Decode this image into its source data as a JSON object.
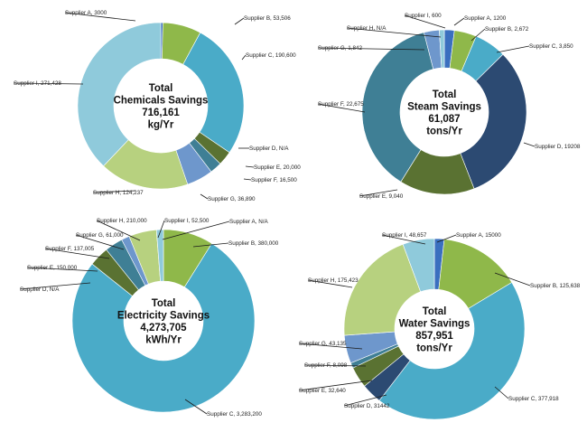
{
  "colors": {
    "A": "#3a6fbf",
    "B": "#8fb84a",
    "C": "#4aabc8",
    "D": "#2c4a72",
    "E": "#5a7232",
    "F": "#3f7f95",
    "G": "#6e97cc",
    "H": "#b7d17f",
    "I": "#8fcadb"
  },
  "chart_data": [
    {
      "type": "donut",
      "center": [
        "Total",
        "Chemicals Savings",
        "716,161",
        "kg/Yr"
      ],
      "slices": [
        {
          "supplier": "A",
          "value": 3000,
          "label": "Supplier A, 3000"
        },
        {
          "supplier": "B",
          "value": 53506,
          "label": "Supplier B, 53,506"
        },
        {
          "supplier": "C",
          "value": 190600,
          "label": "Supplier C, 190,600"
        },
        {
          "supplier": "D",
          "value": 0,
          "label": "Supplier D, N/A"
        },
        {
          "supplier": "E",
          "value": 20000,
          "label": "Supplier E, 20,000"
        },
        {
          "supplier": "F",
          "value": 16500,
          "label": "Supplier F, 16,500"
        },
        {
          "supplier": "G",
          "value": 36890,
          "label": "Supplier G, 36,890"
        },
        {
          "supplier": "H",
          "value": 124237,
          "label": "Supplier H, 124,237"
        },
        {
          "supplier": "I",
          "value": 271428,
          "label": "Supplier I, 271,428"
        }
      ]
    },
    {
      "type": "donut",
      "center": [
        "Total",
        "Steam Savings",
        "61,087",
        "tons/Yr"
      ],
      "slices": [
        {
          "supplier": "A",
          "value": 1200,
          "label": "Supplier A, 1200"
        },
        {
          "supplier": "B",
          "value": 2672,
          "label": "Supplier B, 2,672"
        },
        {
          "supplier": "C",
          "value": 3850,
          "label": "Supplier C, 3,850"
        },
        {
          "supplier": "D",
          "value": 19208,
          "label": "Supplier D, 19208"
        },
        {
          "supplier": "E",
          "value": 9040,
          "label": "Supplier E, 9,040"
        },
        {
          "supplier": "F",
          "value": 22675,
          "label": "Supplier F, 22,675"
        },
        {
          "supplier": "G",
          "value": 1842,
          "label": "Supplier G, 1,842"
        },
        {
          "supplier": "H",
          "value": 0,
          "label": "Supplier H, N/A"
        },
        {
          "supplier": "I",
          "value": 600,
          "label": "Supplier I, 600"
        }
      ]
    },
    {
      "type": "donut",
      "center": [
        "Total",
        "Electricity Savings",
        "4,273,705",
        "kWh/Yr"
      ],
      "slices": [
        {
          "supplier": "A",
          "value": 0,
          "label": "Supplier A, N/A"
        },
        {
          "supplier": "B",
          "value": 380000,
          "label": "Supplier B, 380,000"
        },
        {
          "supplier": "C",
          "value": 3283200,
          "label": "Supplier C, 3,283,200"
        },
        {
          "supplier": "D",
          "value": 0,
          "label": "Supplier D, N/A"
        },
        {
          "supplier": "E",
          "value": 150000,
          "label": "Supplier E, 150,000"
        },
        {
          "supplier": "F",
          "value": 137005,
          "label": "Supplier F, 137,005"
        },
        {
          "supplier": "G",
          "value": 61000,
          "label": "Supplier G, 61,000"
        },
        {
          "supplier": "H",
          "value": 210000,
          "label": "Supplier H, 210,000"
        },
        {
          "supplier": "I",
          "value": 52500,
          "label": "Supplier I, 52,500"
        }
      ]
    },
    {
      "type": "donut",
      "center": [
        "Total",
        "Water Savings",
        "857,951",
        "tons/Yr"
      ],
      "slices": [
        {
          "supplier": "A",
          "value": 15000,
          "label": "Supplier A, 15000"
        },
        {
          "supplier": "B",
          "value": 125638,
          "label": "Supplier B, 125,638"
        },
        {
          "supplier": "C",
          "value": 377918,
          "label": "Supplier C, 377,918"
        },
        {
          "supplier": "D",
          "value": 31442,
          "label": "Supplier D, 31442"
        },
        {
          "supplier": "E",
          "value": 32640,
          "label": "Supplier E, 32,640"
        },
        {
          "supplier": "F",
          "value": 8098,
          "label": "Supplier F, 8,098"
        },
        {
          "supplier": "G",
          "value": 43135,
          "label": "Supplier G, 43,135"
        },
        {
          "supplier": "H",
          "value": 175423,
          "label": "Supplier H, 175,423"
        },
        {
          "supplier": "I",
          "value": 48657,
          "label": "Supplier I, 48,657"
        }
      ]
    }
  ]
}
